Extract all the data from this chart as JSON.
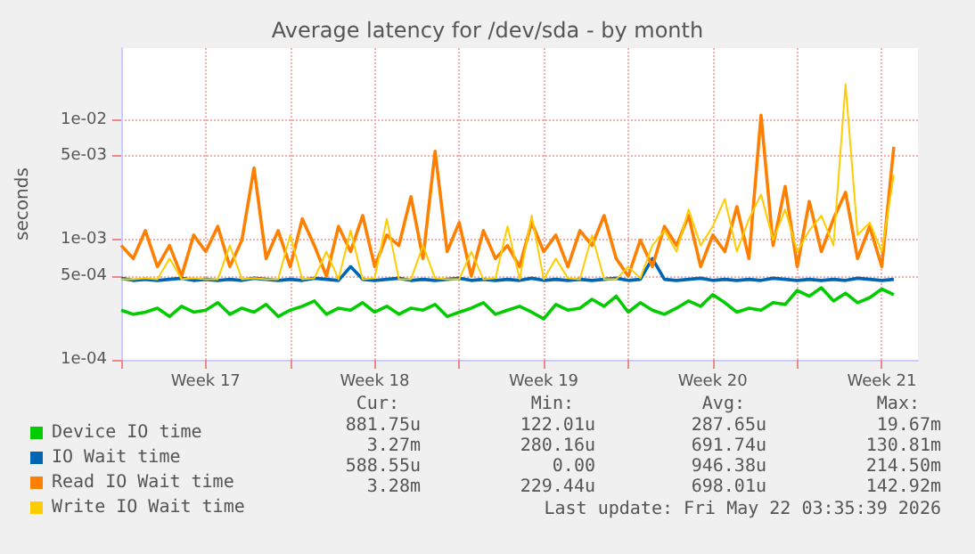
{
  "chart_data": {
    "type": "line",
    "title": "Average latency for /dev/sda - by month",
    "ylabel": "seconds",
    "x": [
      "2026-04-20T00:00",
      "2026-04-20T12:00",
      "2026-04-21T00:00",
      "2026-04-21T12:00",
      "2026-04-22T00:00",
      "2026-04-22T12:00",
      "2026-04-23T00:00",
      "2026-04-23T12:00",
      "2026-04-24T00:00",
      "2026-04-24T12:00",
      "2026-04-25T00:00",
      "2026-04-25T12:00",
      "2026-04-26T00:00",
      "2026-04-26T12:00",
      "2026-04-27T00:00",
      "2026-04-27T12:00",
      "2026-04-28T00:00",
      "2026-04-28T12:00",
      "2026-04-29T00:00",
      "2026-04-29T12:00",
      "2026-04-30T00:00",
      "2026-04-30T12:00",
      "2026-05-01T00:00",
      "2026-05-01T12:00",
      "2026-05-02T00:00",
      "2026-05-02T12:00",
      "2026-05-03T00:00",
      "2026-05-03T12:00",
      "2026-05-04T00:00",
      "2026-05-04T12:00",
      "2026-05-05T00:00",
      "2026-05-05T12:00",
      "2026-05-06T00:00",
      "2026-05-06T12:00",
      "2026-05-07T00:00",
      "2026-05-07T12:00",
      "2026-05-08T00:00",
      "2026-05-08T12:00",
      "2026-05-09T00:00",
      "2026-05-09T12:00",
      "2026-05-10T00:00",
      "2026-05-10T12:00",
      "2026-05-11T00:00",
      "2026-05-11T12:00",
      "2026-05-12T00:00",
      "2026-05-12T12:00",
      "2026-05-13T00:00",
      "2026-05-13T12:00",
      "2026-05-14T00:00",
      "2026-05-14T12:00",
      "2026-05-15T00:00",
      "2026-05-15T12:00",
      "2026-05-16T00:00",
      "2026-05-16T12:00",
      "2026-05-17T00:00",
      "2026-05-17T12:00",
      "2026-05-18T00:00",
      "2026-05-18T12:00",
      "2026-05-19T00:00",
      "2026-05-19T12:00",
      "2026-05-20T00:00",
      "2026-05-20T12:00",
      "2026-05-21T00:00",
      "2026-05-21T12:00",
      "2026-05-22T00:00"
    ],
    "series": [
      {
        "name": "Device IO time",
        "color": "#00cc00",
        "values": [
          0.00026,
          0.00024,
          0.00025,
          0.00027,
          0.00023,
          0.00028,
          0.00025,
          0.00026,
          0.0003,
          0.00024,
          0.00027,
          0.00025,
          0.00029,
          0.00023,
          0.00026,
          0.00028,
          0.00031,
          0.00024,
          0.00027,
          0.00026,
          0.0003,
          0.00025,
          0.00028,
          0.00024,
          0.00027,
          0.00026,
          0.00029,
          0.00023,
          0.00025,
          0.00027,
          0.0003,
          0.00024,
          0.00026,
          0.00028,
          0.00025,
          0.00022,
          0.00029,
          0.00026,
          0.00027,
          0.00032,
          0.00028,
          0.00034,
          0.00025,
          0.0003,
          0.00026,
          0.00024,
          0.00027,
          0.00031,
          0.00028,
          0.00035,
          0.0003,
          0.00025,
          0.00027,
          0.00026,
          0.0003,
          0.00029,
          0.00038,
          0.00034,
          0.0004,
          0.00031,
          0.00036,
          0.0003,
          0.00033,
          0.00039,
          0.00035
        ]
      },
      {
        "name": "IO Wait time",
        "color": "#0066b3",
        "values": [
          0.00048,
          0.00046,
          0.00047,
          0.00046,
          0.00047,
          0.00048,
          0.00046,
          0.00047,
          0.00046,
          0.00047,
          0.00046,
          0.00048,
          0.00047,
          0.00046,
          0.00047,
          0.00046,
          0.00048,
          0.00047,
          0.00046,
          0.0006,
          0.00047,
          0.00046,
          0.00047,
          0.00048,
          0.00046,
          0.00047,
          0.00046,
          0.00047,
          0.00048,
          0.00046,
          0.00047,
          0.00046,
          0.00047,
          0.00046,
          0.00048,
          0.00046,
          0.00047,
          0.00046,
          0.00047,
          0.00046,
          0.00047,
          0.00048,
          0.00046,
          0.00047,
          0.0007,
          0.00047,
          0.00046,
          0.00047,
          0.00048,
          0.00046,
          0.00047,
          0.00046,
          0.00047,
          0.00046,
          0.00048,
          0.00047,
          0.00046,
          0.00047,
          0.00046,
          0.00047,
          0.00046,
          0.00048,
          0.00047,
          0.00046,
          0.00047
        ]
      },
      {
        "name": "Read IO Wait time",
        "color": "#ff8000",
        "values": [
          0.0009,
          0.0007,
          0.0012,
          0.0006,
          0.0009,
          0.0005,
          0.0011,
          0.0008,
          0.0013,
          0.0006,
          0.001,
          0.004,
          0.0007,
          0.0012,
          0.0006,
          0.0015,
          0.0009,
          0.0005,
          0.0013,
          0.0008,
          0.0016,
          0.0006,
          0.0011,
          0.0009,
          0.0023,
          0.0007,
          0.0055,
          0.0008,
          0.0014,
          0.0005,
          0.0012,
          0.0007,
          0.0009,
          0.0006,
          0.0014,
          0.0008,
          0.0011,
          0.0006,
          0.0012,
          0.0009,
          0.0016,
          0.0007,
          0.0005,
          0.001,
          0.0006,
          0.0013,
          0.0009,
          0.0016,
          0.0006,
          0.0011,
          0.0008,
          0.0019,
          0.0007,
          0.011,
          0.0009,
          0.0028,
          0.0006,
          0.0021,
          0.0008,
          0.0015,
          0.0025,
          0.0007,
          0.0013,
          0.0006,
          0.006
        ]
      },
      {
        "name": "Write IO Wait time",
        "color": "#ffcc00",
        "values": [
          0.00047,
          0.00047,
          0.00048,
          0.00047,
          0.0007,
          0.00047,
          0.00048,
          0.00047,
          0.00047,
          0.0009,
          0.00047,
          0.00048,
          0.00047,
          0.00047,
          0.0011,
          0.00047,
          0.00048,
          0.0008,
          0.00047,
          0.0012,
          0.00047,
          0.00048,
          0.0015,
          0.00047,
          0.00047,
          0.0009,
          0.00048,
          0.00047,
          0.00047,
          0.0008,
          0.00047,
          0.00048,
          0.0013,
          0.00047,
          0.0016,
          0.00047,
          0.0007,
          0.00048,
          0.00047,
          0.0011,
          0.00047,
          0.00047,
          0.0006,
          0.00048,
          0.0009,
          0.0012,
          0.0008,
          0.0018,
          0.0009,
          0.0013,
          0.0022,
          0.0008,
          0.0015,
          0.0024,
          0.001,
          0.0018,
          0.0008,
          0.0012,
          0.0016,
          0.0009,
          0.02,
          0.0011,
          0.0014,
          0.0008,
          0.0035
        ]
      }
    ],
    "xlim": [
      "2026-04-20T00:00",
      "2026-05-23T00:00"
    ],
    "xticks": [
      {
        "value": "2026-04-20T00:00",
        "label": null
      },
      {
        "value": "2026-04-23T12:00",
        "label": "Week 17"
      },
      {
        "value": "2026-04-27T00:00",
        "label": null
      },
      {
        "value": "2026-04-30T12:00",
        "label": "Week 18"
      },
      {
        "value": "2026-05-04T00:00",
        "label": null
      },
      {
        "value": "2026-05-07T12:00",
        "label": "Week 19"
      },
      {
        "value": "2026-05-11T00:00",
        "label": null
      },
      {
        "value": "2026-05-14T12:00",
        "label": "Week 20"
      },
      {
        "value": "2026-05-18T00:00",
        "label": null
      },
      {
        "value": "2026-05-21T12:00",
        "label": "Week 21"
      }
    ],
    "ylim": [
      0.0001,
      0.04
    ],
    "yticks": [
      {
        "value": 0.0001,
        "label": "1e-04"
      },
      {
        "value": 0.0005,
        "label": "5e-04"
      },
      {
        "value": 0.001,
        "label": "1e-03"
      },
      {
        "value": 0.005,
        "label": "5e-03"
      },
      {
        "value": 0.01,
        "label": "1e-02"
      }
    ],
    "log": true,
    "grid": true,
    "legend": "bottom left",
    "marker": "none",
    "line_style": "solid",
    "annotations": [
      "Cur:",
      "Min:",
      "Avg:",
      "Max:",
      "881.75u",
      "122.01u",
      "287.65u",
      "19.67m",
      "3.27m",
      "280.16u",
      "691.74u",
      "130.81m",
      "588.55u",
      "0.00",
      "946.38u",
      "214.50m",
      "3.28m",
      "229.44u",
      "698.01u",
      "142.92m",
      "Last update: Fri May 22 03:35:39 2026"
    ]
  }
}
